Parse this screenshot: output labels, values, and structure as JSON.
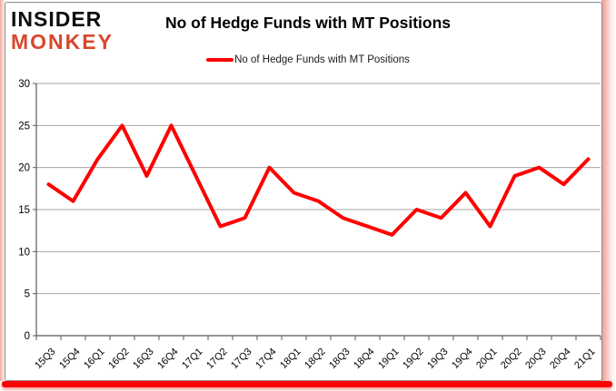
{
  "logo": {
    "line1": "INSIDER",
    "line2": "MONKEY",
    "line1_color": "#0d0d0d",
    "line2_color": "#d9472b"
  },
  "header": {
    "title": "No of Hedge Funds with MT Positions"
  },
  "legend": {
    "label": "No of Hedge Funds with MT Positions",
    "swatch_color": "#fe0000"
  },
  "chart_data": {
    "type": "line",
    "title": "No of Hedge Funds with MT Positions",
    "categories": [
      "15Q3",
      "15Q4",
      "16Q1",
      "16Q2",
      "16Q3",
      "16Q4",
      "17Q1",
      "17Q2",
      "17Q3",
      "17Q4",
      "18Q1",
      "18Q2",
      "18Q3",
      "18Q4",
      "19Q1",
      "19Q2",
      "19Q3",
      "19Q4",
      "20Q1",
      "20Q2",
      "20Q3",
      "20Q4",
      "21Q1"
    ],
    "series": [
      {
        "name": "No of Hedge Funds with MT Positions",
        "color": "#fe0000",
        "values": [
          18,
          16,
          21,
          25,
          19,
          25,
          19,
          13,
          14,
          20,
          17,
          16,
          14,
          13,
          12,
          15,
          14,
          17,
          13,
          19,
          20,
          18,
          21
        ]
      }
    ],
    "ylim": [
      0,
      30
    ],
    "yticks": [
      0,
      5,
      10,
      15,
      20,
      25,
      30
    ],
    "xlabel": "",
    "ylabel": "",
    "grid": true,
    "legend_position": "top",
    "gridline_color": "#a6a6a6",
    "axis_color": "#595959",
    "tick_label_color": "#000000"
  },
  "frame": {
    "bottom_bar_color": "#fa0505"
  }
}
